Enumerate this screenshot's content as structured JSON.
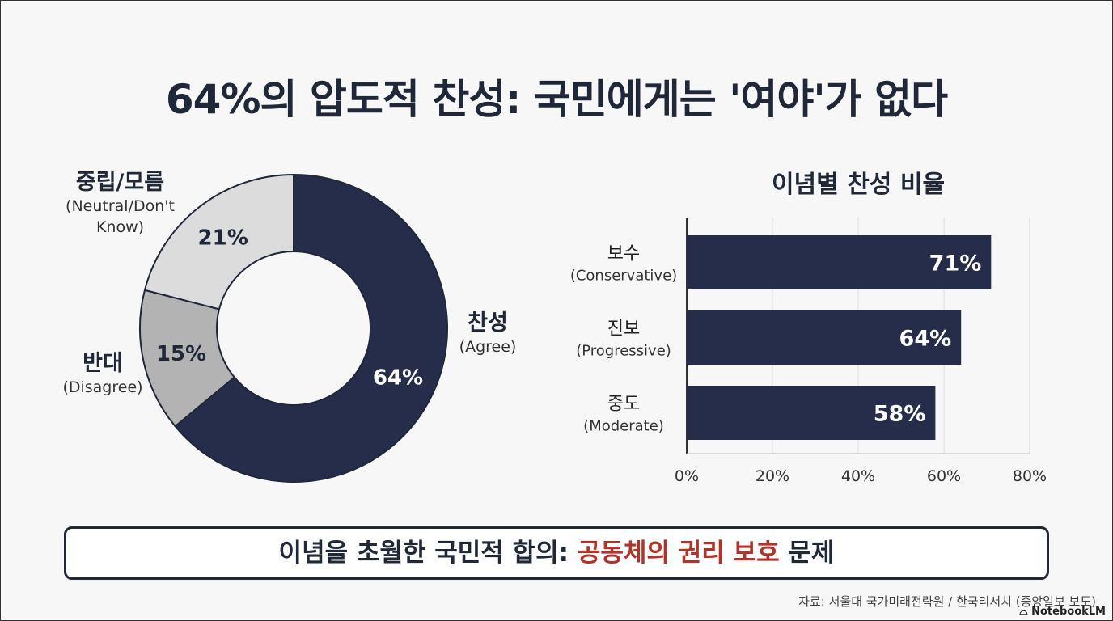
{
  "title": "64%의 압도적 찬성: 국민에게는 '여야'가 없다",
  "chart_data": [
    {
      "type": "pie",
      "donut": true,
      "slices": [
        {
          "label_ko": "찬성",
          "label_en": "(Agree)",
          "value": 64,
          "value_label": "64%",
          "color": "#252d4a"
        },
        {
          "label_ko": "반대",
          "label_en": "(Disagree)",
          "value": 15,
          "value_label": "15%",
          "color": "#b3b3b3"
        },
        {
          "label_ko": "중립/모름",
          "label_en": "(Neutral/Don't Know)",
          "label_en_lines": [
            "(Neutral/Don't",
            "Know)"
          ],
          "value": 21,
          "value_label": "21%",
          "color": "#dcdcdc"
        }
      ]
    },
    {
      "type": "bar",
      "orientation": "horizontal",
      "title": "이념별 찬성 비율",
      "categories": [
        {
          "ko": "보수",
          "en": "(Conservative)"
        },
        {
          "ko": "진보",
          "en": "(Progressive)"
        },
        {
          "ko": "중도",
          "en": "(Moderate)"
        }
      ],
      "values": [
        71,
        64,
        58
      ],
      "value_labels": [
        "71%",
        "64%",
        "58%"
      ],
      "xlim": [
        0,
        80
      ],
      "xticks": [
        "0%",
        "20%",
        "40%",
        "60%",
        "80%"
      ],
      "grid": true,
      "color": "#252d4a"
    }
  ],
  "summary": {
    "prefix": "이념을 초월한 국민적 합의: ",
    "highlight": "공동체의 권리 보호",
    "suffix": " 문제",
    "highlight_color": "#b3322a"
  },
  "source": "자료: 서울대 국가미래전략원 / 한국리서치 (중앙일보 보도)",
  "brand": "NotebookLM"
}
